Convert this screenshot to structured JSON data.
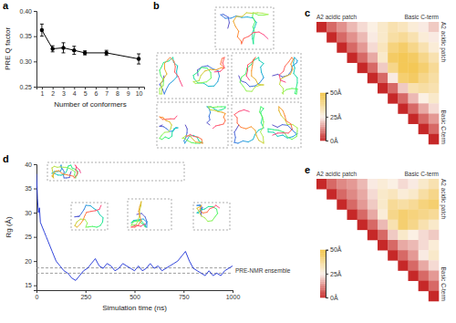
{
  "chart_data": [
    {
      "type": "line",
      "title": "a",
      "x_label": "Number of conformers",
      "y_label": "PRE Q factor",
      "x": [
        1,
        2,
        3,
        4,
        5,
        7,
        10
      ],
      "values": [
        0.362,
        0.325,
        0.327,
        0.322,
        0.317,
        0.317,
        0.305
      ],
      "errors": [
        0.012,
        0.006,
        0.01,
        0.008,
        0.004,
        0.005,
        0.01
      ],
      "color": "#000000",
      "marker": "circle",
      "xlim": [
        0.5,
        10.5
      ],
      "xticks": [
        1,
        2,
        3,
        4,
        5,
        6,
        7,
        8,
        9,
        10
      ],
      "ylim": [
        0.25,
        0.4
      ],
      "yticks": [
        0.25,
        {
          "value": 0.3,
          "label": "0.30"
        },
        0.35,
        {
          "value": 0.4,
          "label": "0.40"
        }
      ]
    },
    {
      "type": "image",
      "title": "b"
    },
    {
      "type": "heatmap",
      "title": "c",
      "annotations": [
        "A2 acidic patch",
        "Basic C-term"
      ],
      "cells": [
        [
          0,
          8,
          13,
          18,
          22,
          26,
          30,
          34,
          32,
          28,
          24,
          20
        ],
        [
          null,
          0,
          8,
          13,
          18,
          24,
          30,
          36,
          38,
          34,
          28,
          24
        ],
        [
          null,
          null,
          0,
          8,
          14,
          22,
          32,
          42,
          45,
          40,
          34,
          28
        ],
        [
          null,
          null,
          null,
          0,
          8,
          16,
          30,
          46,
          48,
          46,
          40,
          34
        ],
        [
          null,
          null,
          null,
          null,
          0,
          8,
          20,
          40,
          48,
          48,
          44,
          38
        ],
        [
          null,
          null,
          null,
          null,
          null,
          0,
          8,
          24,
          44,
          46,
          40,
          36
        ],
        [
          null,
          null,
          null,
          null,
          null,
          null,
          0,
          8,
          20,
          34,
          36,
          34
        ],
        [
          null,
          null,
          null,
          null,
          null,
          null,
          null,
          0,
          8,
          18,
          26,
          30
        ],
        [
          null,
          null,
          null,
          null,
          null,
          null,
          null,
          null,
          0,
          8,
          16,
          22
        ],
        [
          null,
          null,
          null,
          null,
          null,
          null,
          null,
          null,
          null,
          0,
          8,
          14
        ],
        [
          null,
          null,
          null,
          null,
          null,
          null,
          null,
          null,
          null,
          null,
          0,
          8
        ],
        [
          null,
          null,
          null,
          null,
          null,
          null,
          null,
          null,
          null,
          null,
          null,
          0
        ]
      ],
      "colorbar": {
        "range": [
          0,
          50
        ],
        "ticks": [
          {
            "value": 0,
            "label": "0Å"
          },
          {
            "value": 25,
            "label": "25Å"
          },
          {
            "value": 50,
            "label": "50Å"
          }
        ]
      }
    },
    {
      "type": "line",
      "title": "d",
      "x_label": "Simulation time (ns)",
      "y_label": "Rg (Å)",
      "x": [
        0,
        5,
        10,
        15,
        20,
        30,
        40,
        50,
        60,
        80,
        100,
        120,
        140,
        160,
        180,
        200,
        220,
        240,
        260,
        280,
        300,
        320,
        340,
        360,
        380,
        400,
        420,
        440,
        460,
        480,
        500,
        520,
        540,
        560,
        580,
        600,
        620,
        640,
        660,
        680,
        700,
        720,
        740,
        760,
        780,
        800,
        820,
        840,
        860,
        880,
        900,
        920,
        940,
        960,
        980,
        1000
      ],
      "values": [
        38,
        33,
        30,
        31,
        28,
        27,
        26,
        25,
        24,
        22,
        20,
        19,
        18,
        17.5,
        16.5,
        16,
        17,
        18,
        18.5,
        19.5,
        20.5,
        19,
        18.5,
        19.5,
        19,
        18,
        18.5,
        19.5,
        19,
        18.5,
        18,
        19,
        18,
        18.5,
        19.5,
        18.5,
        19,
        18,
        18.5,
        19,
        19.5,
        20,
        21,
        22,
        20,
        18.5,
        18,
        17.5,
        17,
        18,
        17,
        17.5,
        17,
        18,
        18.5,
        19
      ],
      "color": "#1a2fd6",
      "xlim": [
        0,
        1000
      ],
      "xticks": [
        0,
        250,
        500,
        750,
        1000
      ],
      "ylim": [
        14,
        40
      ],
      "yticks": [
        15,
        20,
        25,
        30,
        35,
        40
      ],
      "annotations": [
        {
          "text": "PRE-NMR ensemble",
          "values": [
            17.5,
            18.6
          ]
        }
      ]
    },
    {
      "type": "heatmap",
      "title": "e",
      "annotations": [
        "A2 acidic patch",
        "Basic C-term"
      ],
      "cells": [
        [
          0,
          8,
          12,
          14,
          18,
          24,
          28,
          26,
          22,
          24,
          30,
          34
        ],
        [
          null,
          0,
          8,
          12,
          16,
          22,
          30,
          32,
          28,
          30,
          36,
          40
        ],
        [
          null,
          null,
          0,
          8,
          14,
          20,
          30,
          38,
          36,
          38,
          42,
          44
        ],
        [
          null,
          null,
          null,
          0,
          8,
          16,
          28,
          40,
          44,
          42,
          40,
          38
        ],
        [
          null,
          null,
          null,
          null,
          0,
          8,
          18,
          34,
          44,
          40,
          34,
          30
        ],
        [
          null,
          null,
          null,
          null,
          null,
          0,
          8,
          20,
          30,
          26,
          22,
          20
        ],
        [
          null,
          null,
          null,
          null,
          null,
          null,
          0,
          8,
          16,
          18,
          22,
          28
        ],
        [
          null,
          null,
          null,
          null,
          null,
          null,
          null,
          0,
          8,
          14,
          24,
          30
        ],
        [
          null,
          null,
          null,
          null,
          null,
          null,
          null,
          null,
          0,
          8,
          16,
          22
        ],
        [
          null,
          null,
          null,
          null,
          null,
          null,
          null,
          null,
          null,
          0,
          8,
          14
        ],
        [
          null,
          null,
          null,
          null,
          null,
          null,
          null,
          null,
          null,
          null,
          0,
          8
        ],
        [
          null,
          null,
          null,
          null,
          null,
          null,
          null,
          null,
          null,
          null,
          null,
          0
        ]
      ],
      "colorbar": {
        "range": [
          0,
          50
        ],
        "ticks": [
          {
            "value": 0,
            "label": "0Å"
          },
          {
            "value": 25,
            "label": "25Å"
          },
          {
            "value": 50,
            "label": "50Å"
          }
        ]
      }
    }
  ]
}
